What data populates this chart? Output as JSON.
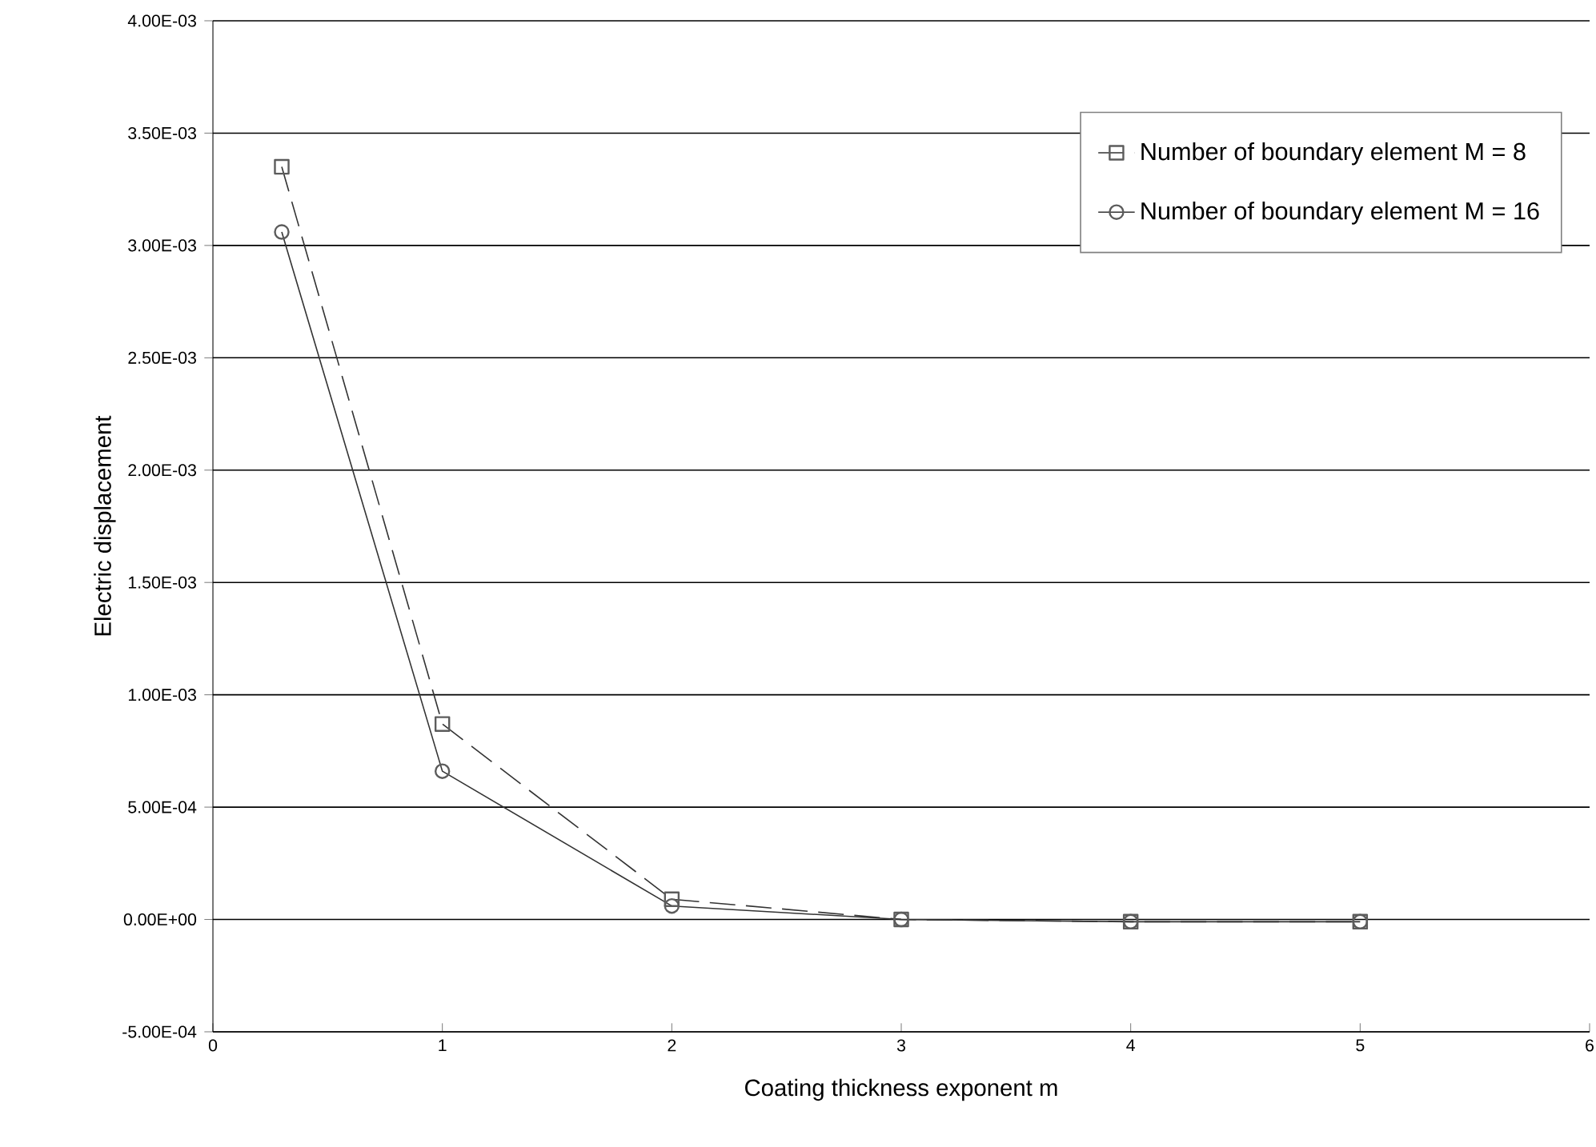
{
  "chart_data": {
    "type": "line",
    "xlabel": "Coating thickness exponent m",
    "ylabel": "Electric displacement",
    "x": [
      0.3,
      1,
      2,
      3,
      4,
      5
    ],
    "series": [
      {
        "name": "Number of boundary element M = 8",
        "color": "#333333",
        "marker": "square",
        "line_style": "dashed",
        "values": [
          0.00335,
          0.00087,
          9e-05,
          0,
          -1e-05,
          -1e-05
        ]
      },
      {
        "name": "Number of boundary element M = 16",
        "color": "#333333",
        "marker": "circle",
        "line_style": "solid",
        "values": [
          0.00306,
          0.00066,
          6e-05,
          0,
          -1e-05,
          -1e-05
        ]
      }
    ],
    "xlim": [
      0,
      6
    ],
    "xticks": [
      0,
      1,
      2,
      3,
      4,
      5,
      6
    ],
    "ylim": [
      -0.0005,
      0.004
    ],
    "yticks": [
      {
        "value": -0.0005,
        "label": "-5.00E-04"
      },
      {
        "value": 0,
        "label": "0.00E+00"
      },
      {
        "value": 0.0005,
        "label": "5.00E-04"
      },
      {
        "value": 0.001,
        "label": "1.00E-03"
      },
      {
        "value": 0.0015,
        "label": "1.50E-03"
      },
      {
        "value": 0.002,
        "label": "2.00E-03"
      },
      {
        "value": 0.0025,
        "label": "2.50E-03"
      },
      {
        "value": 0.003,
        "label": "3.00E-03"
      },
      {
        "value": 0.0035,
        "label": "3.50E-03"
      },
      {
        "value": 0.004,
        "label": "4.00E-03"
      }
    ],
    "grid": "y",
    "legend": "top right"
  }
}
